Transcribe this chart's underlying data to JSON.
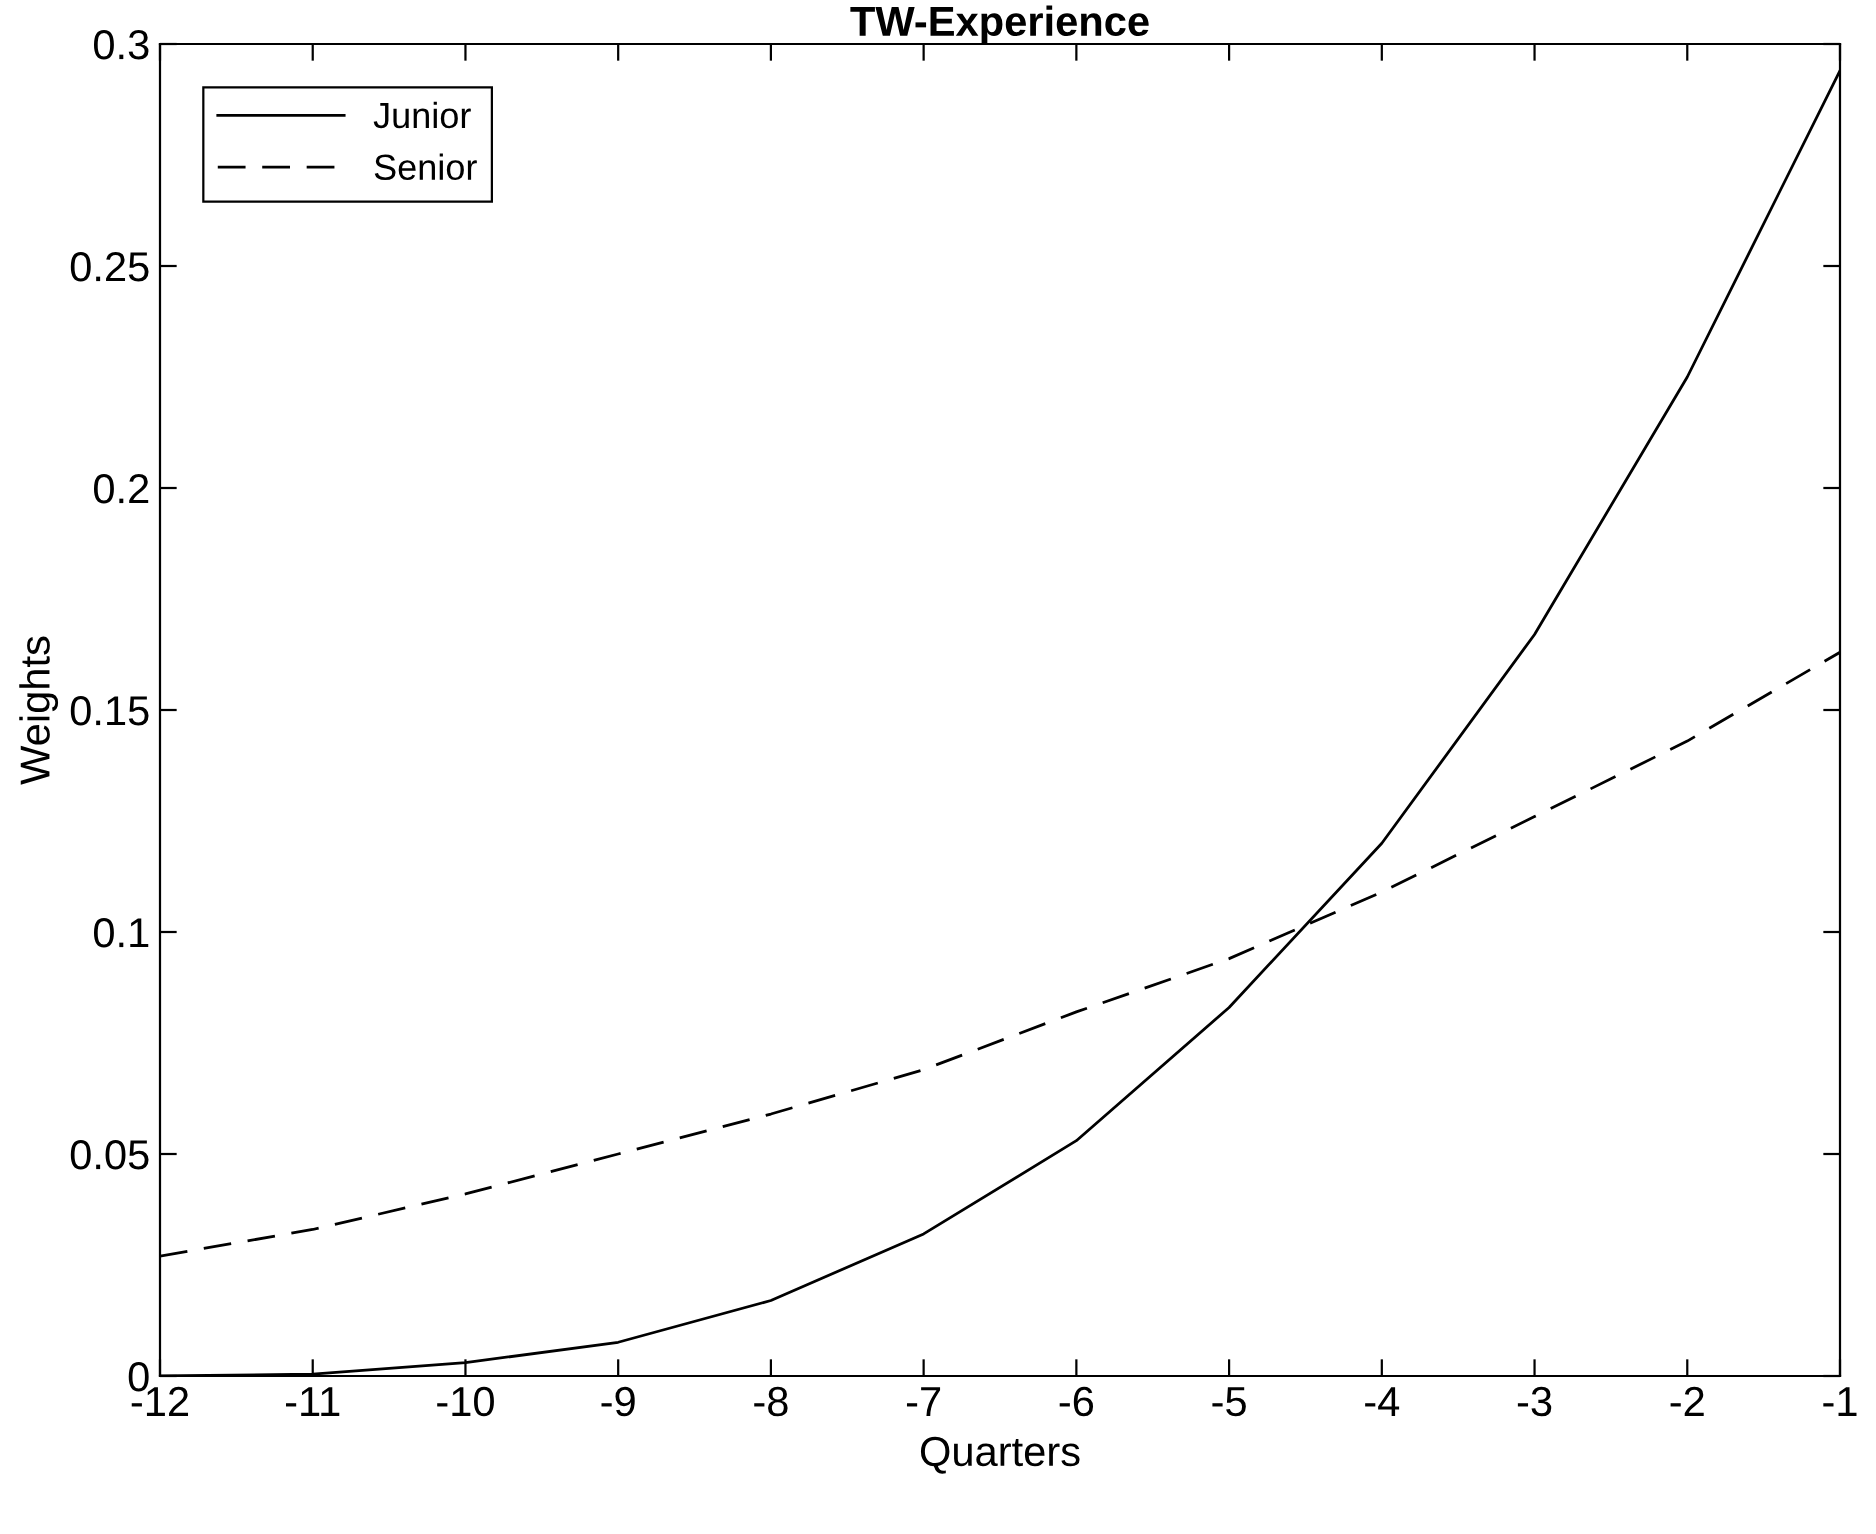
{
  "chart_data": {
    "type": "line",
    "title": "TW-Experience",
    "xlabel": "Quarters",
    "ylabel": "Weights",
    "x": [
      -12,
      -11,
      -10,
      -9,
      -8,
      -7,
      -6,
      -5,
      -4,
      -3,
      -2,
      -1
    ],
    "series": [
      {
        "name": "Junior",
        "color": "#000000",
        "line_style": "solid",
        "values": [
          0.0,
          0.0004,
          0.003,
          0.0076,
          0.017,
          0.032,
          0.053,
          0.083,
          0.12,
          0.167,
          0.225,
          0.294
        ]
      },
      {
        "name": "Senior",
        "color": "#000000",
        "line_style": "dashed",
        "values": [
          0.027,
          0.033,
          0.041,
          0.05,
          0.059,
          0.069,
          0.082,
          0.094,
          0.109,
          0.126,
          0.143,
          0.163
        ]
      }
    ],
    "xlim": [
      -12,
      -1
    ],
    "xticks": [
      -12,
      -11,
      -10,
      -9,
      -8,
      -7,
      -6,
      -5,
      -4,
      -3,
      -2,
      -1
    ],
    "ylim": [
      0,
      0.3
    ],
    "yticks": [
      0,
      0.05,
      0.1,
      0.15,
      0.2,
      0.25,
      0.3
    ],
    "grid": false,
    "legend": "top left",
    "marker": "none"
  }
}
